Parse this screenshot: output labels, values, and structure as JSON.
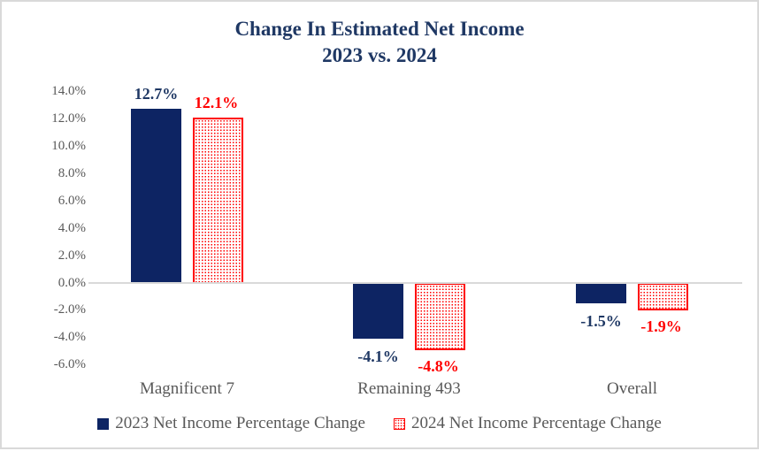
{
  "page": {
    "frame_border_color": "#d9d9d9",
    "background_color": "#ffffff"
  },
  "chart_data": {
    "type": "bar",
    "title": "Change In Estimated Net Income",
    "subtitle": "2023 vs. 2024",
    "title_color": "#1f3864",
    "categories": [
      "Magnificent 7",
      "Remaining 493",
      "Overall"
    ],
    "series": [
      {
        "name": "2023 Net Income Percentage Change",
        "values": [
          12.7,
          -4.1,
          -1.5
        ],
        "data_labels": [
          "12.7%",
          "-4.1%",
          "-1.5%"
        ],
        "color": "#0d2463",
        "label_color": "#1f3864",
        "fill": "solid"
      },
      {
        "name": "2024 Net Income Percentage Change",
        "values": [
          12.1,
          -4.8,
          -1.9
        ],
        "data_labels": [
          "12.1%",
          "-4.8%",
          "-1.9%"
        ],
        "color": "#ff0000",
        "label_color": "#ff0000",
        "fill": "dotted"
      }
    ],
    "yticks": [
      "14.0%",
      "12.0%",
      "10.0%",
      "8.0%",
      "6.0%",
      "4.0%",
      "2.0%",
      "0.0%",
      "-2.0%",
      "-4.0%",
      "-6.0%"
    ],
    "ylim": [
      -6.0,
      14.0
    ],
    "xlabel": "",
    "ylabel": "",
    "grid": "zero-line-only",
    "zero_line_color": "#d9d9d9",
    "axis_text_color": "#595959",
    "legend_position": "bottom"
  }
}
